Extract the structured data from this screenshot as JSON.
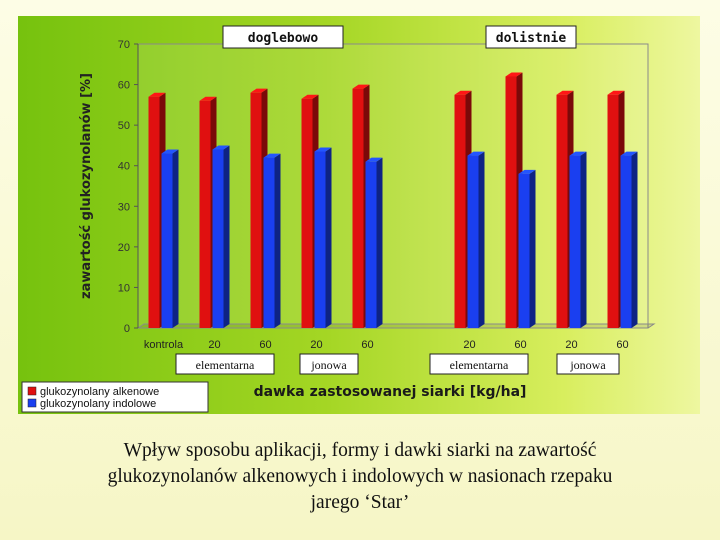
{
  "colors": {
    "alkenowe": "#e01010",
    "indolowe": "#1a3ff0",
    "panel_left": "#76c20e",
    "panel_right": "#eef7a0"
  },
  "chart_data": {
    "type": "bar",
    "title": "",
    "ylabel": "zawartość glukozynolanów [%]",
    "xlabel": "dawka zastosowanej siarki [kg/ha]",
    "ylim": [
      0,
      70
    ],
    "yticks": [
      0,
      10,
      20,
      30,
      40,
      50,
      60,
      70
    ],
    "categories": [
      "kontrola",
      "20",
      "60",
      "20",
      "60",
      "",
      "20",
      "60",
      "20",
      "60"
    ],
    "series": [
      {
        "name": "glukozynolany alkenowe",
        "values": [
          57,
          56,
          58,
          56.5,
          59,
          null,
          57.5,
          62,
          57.5,
          57.5
        ]
      },
      {
        "name": "glukozynolany indolowe",
        "values": [
          43,
          44,
          42,
          43.5,
          41,
          null,
          42.5,
          38,
          42.5,
          42.5
        ]
      }
    ],
    "group_labels": [
      "doglebowo",
      "dolistnie"
    ],
    "form_labels": [
      "elementarna",
      "jonowa",
      "elementarna",
      "jonowa"
    ],
    "grid": false,
    "legend_position": "bottom-left"
  },
  "caption": {
    "line1": "Wpływ sposobu aplikacji, formy i dawki siarki  na zawartość",
    "line2": "glukozynolanów alkenowych i indolowych w nasionach rzepaku",
    "line3": "jarego ‘Star’"
  }
}
